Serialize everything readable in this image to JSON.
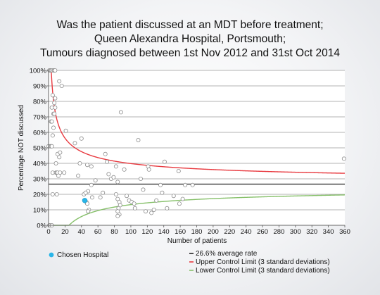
{
  "chart_data": {
    "type": "scatter",
    "title_lines": [
      "Was the patient discussed at an MDT before treatment;",
      "Queen Alexandra Hospital, Portsmouth;",
      "Tumours diagnosed between 1st Nov 2012 and 31st Oct 2014"
    ],
    "xlabel": "Number of patients",
    "ylabel": "Percentage NOT discussed",
    "xlim": [
      0,
      360
    ],
    "ylim": [
      0,
      100
    ],
    "x_ticks": [
      0,
      20,
      40,
      60,
      80,
      100,
      120,
      140,
      160,
      180,
      200,
      220,
      240,
      260,
      280,
      300,
      320,
      340,
      360
    ],
    "y_ticks": [
      "0%",
      "10%",
      "20%",
      "30%",
      "40%",
      "50%",
      "60%",
      "70%",
      "80%",
      "90%",
      "100%"
    ],
    "grid": "horizontal",
    "average_rate": 26.6,
    "control_limit_sd": 3,
    "series": [
      {
        "name": "Chosen Hospital",
        "color": "#29b5e8",
        "points": [
          [
            44,
            16
          ]
        ]
      },
      {
        "color": "#ffffff",
        "points": [
          [
            1,
            100
          ],
          [
            2,
            100
          ],
          [
            3,
            100
          ],
          [
            4,
            100
          ],
          [
            6,
            100
          ],
          [
            7,
            100
          ],
          [
            8,
            100
          ],
          [
            0,
            51
          ],
          [
            2,
            51
          ],
          [
            3,
            51
          ],
          [
            4,
            51
          ],
          [
            3,
            67
          ],
          [
            4,
            67
          ],
          [
            4,
            76
          ],
          [
            5,
            84
          ],
          [
            6,
            72
          ],
          [
            7,
            72
          ],
          [
            7,
            79
          ],
          [
            8,
            82
          ],
          [
            8,
            76
          ],
          [
            6,
            63
          ],
          [
            5,
            58
          ],
          [
            5,
            34
          ],
          [
            9,
            34
          ],
          [
            10,
            34
          ],
          [
            11,
            34
          ],
          [
            14,
            34
          ],
          [
            19,
            34
          ],
          [
            13,
            44
          ],
          [
            11,
            46
          ],
          [
            14,
            47
          ],
          [
            9,
            40
          ],
          [
            12,
            32
          ],
          [
            13,
            93
          ],
          [
            16,
            90
          ],
          [
            21,
            61
          ],
          [
            32,
            53
          ],
          [
            40,
            56
          ],
          [
            38,
            40
          ],
          [
            47,
            39
          ],
          [
            52,
            38
          ],
          [
            5,
            20
          ],
          [
            10,
            20
          ],
          [
            1,
            0
          ],
          [
            2,
            0
          ],
          [
            4,
            0
          ],
          [
            36,
            32
          ],
          [
            43,
            20
          ],
          [
            48,
            22
          ],
          [
            45,
            21
          ],
          [
            46,
            15
          ],
          [
            47,
            14
          ],
          [
            49,
            10
          ],
          [
            48,
            9
          ],
          [
            53,
            18
          ],
          [
            52,
            26
          ],
          [
            57,
            29
          ],
          [
            63,
            18
          ],
          [
            66,
            21
          ],
          [
            69,
            46
          ],
          [
            71,
            41
          ],
          [
            73,
            33
          ],
          [
            76,
            30
          ],
          [
            79,
            31
          ],
          [
            82,
            38
          ],
          [
            82,
            20
          ],
          [
            84,
            17
          ],
          [
            86,
            15
          ],
          [
            87,
            13
          ],
          [
            85,
            11
          ],
          [
            84,
            9
          ],
          [
            86,
            7
          ],
          [
            84,
            6
          ],
          [
            88,
            73
          ],
          [
            84,
            28
          ],
          [
            92,
            36
          ],
          [
            95,
            19
          ],
          [
            98,
            16
          ],
          [
            101,
            15
          ],
          [
            104,
            14
          ],
          [
            105,
            11
          ],
          [
            109,
            55
          ],
          [
            112,
            30
          ],
          [
            115,
            23
          ],
          [
            118,
            9
          ],
          [
            121,
            38
          ],
          [
            122,
            36
          ],
          [
            125,
            8
          ],
          [
            128,
            10
          ],
          [
            131,
            16
          ],
          [
            136,
            26
          ],
          [
            138,
            21
          ],
          [
            141,
            41
          ],
          [
            144,
            11
          ],
          [
            152,
            19
          ],
          [
            158,
            35
          ],
          [
            159,
            14
          ],
          [
            163,
            17
          ],
          [
            166,
            26
          ],
          [
            175,
            26
          ],
          [
            359,
            43
          ]
        ]
      }
    ],
    "lines": [
      {
        "name": "26.6% average rate",
        "color": "#222222"
      },
      {
        "name": "Upper Control Limit (3 standard deviations)",
        "color": "#e8393f"
      },
      {
        "name": "Lower Control Limit (3 standard deviations)",
        "color": "#86c06a"
      }
    ],
    "legend_placement": "bottom",
    "legend_left": [
      "Chosen Hospital"
    ]
  }
}
